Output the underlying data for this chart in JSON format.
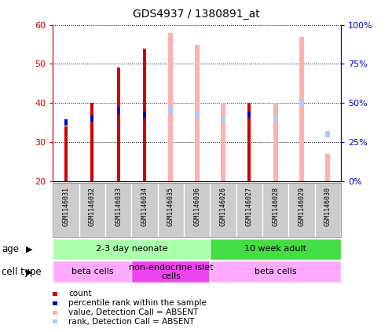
{
  "title": "GDS4937 / 1380891_at",
  "samples": [
    "GSM1146031",
    "GSM1146032",
    "GSM1146033",
    "GSM1146034",
    "GSM1146035",
    "GSM1146036",
    "GSM1146026",
    "GSM1146027",
    "GSM1146028",
    "GSM1146029",
    "GSM1146030"
  ],
  "count_values": [
    34,
    40,
    49,
    54,
    null,
    null,
    null,
    40,
    null,
    null,
    null
  ],
  "rank_values": [
    35,
    36,
    38,
    37,
    null,
    null,
    null,
    37,
    null,
    null,
    null
  ],
  "absent_value": [
    null,
    null,
    null,
    null,
    58,
    55,
    40,
    null,
    40,
    57,
    27
  ],
  "absent_rank": [
    null,
    null,
    null,
    null,
    38,
    37,
    36,
    null,
    36,
    40,
    32
  ],
  "ylim_left": [
    20,
    60
  ],
  "ylim_right": [
    0,
    100
  ],
  "yticks_left": [
    20,
    30,
    40,
    50,
    60
  ],
  "yticks_right": [
    0,
    25,
    50,
    75,
    100
  ],
  "ytick_labels_right": [
    "0%",
    "25%",
    "50%",
    "75%",
    "100%"
  ],
  "color_count": "#cc0000",
  "color_rank": "#0000cc",
  "color_absent_value": "#ffb0b0",
  "color_absent_rank": "#b0c8ff",
  "age_groups": [
    {
      "label": "2-3 day neonate",
      "start": 0,
      "end": 6,
      "color": "#aaffaa"
    },
    {
      "label": "10 week adult",
      "start": 6,
      "end": 11,
      "color": "#44dd44"
    }
  ],
  "cell_type_groups": [
    {
      "label": "beta cells",
      "start": 0,
      "end": 3,
      "color": "#ffaaff"
    },
    {
      "label": "non-endocrine islet\ncells",
      "start": 3,
      "end": 6,
      "color": "#ee44ee"
    },
    {
      "label": "beta cells",
      "start": 6,
      "end": 11,
      "color": "#ffaaff"
    }
  ],
  "legend_items": [
    {
      "label": "count",
      "color": "#cc0000"
    },
    {
      "label": "percentile rank within the sample",
      "color": "#0000cc"
    },
    {
      "label": "value, Detection Call = ABSENT",
      "color": "#ffb0b0"
    },
    {
      "label": "rank, Detection Call = ABSENT",
      "color": "#b0c8ff"
    }
  ]
}
